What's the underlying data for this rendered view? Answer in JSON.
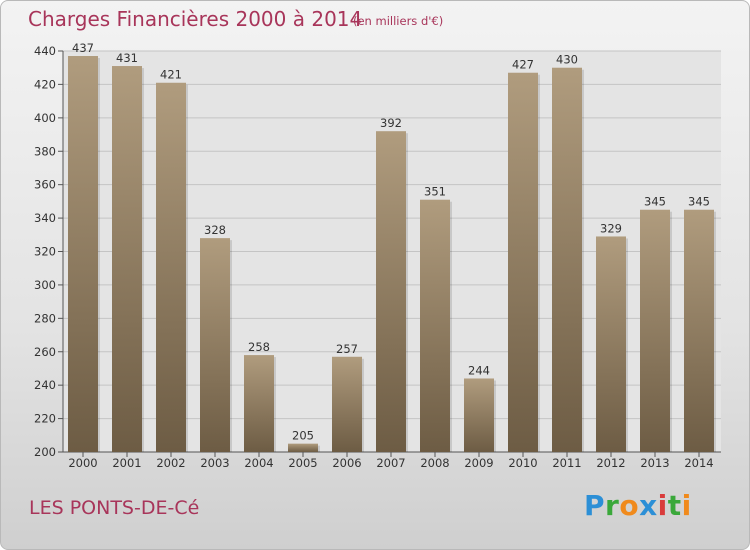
{
  "header": {
    "title": "Charges Financières 2000 à 2014",
    "subtitle": "(en milliers d'€)"
  },
  "footer": {
    "commune": "LES PONTS-DE-Cé",
    "logo_letters": [
      {
        "char": "P",
        "color": "#2c8fd6"
      },
      {
        "char": "r",
        "color": "#3aa83a"
      },
      {
        "char": "o",
        "color": "#f08a1c"
      },
      {
        "char": "x",
        "color": "#2c8fd6"
      },
      {
        "char": "i",
        "color": "#d93b3b"
      },
      {
        "char": "t",
        "color": "#3aa83a"
      },
      {
        "char": "i",
        "color": "#f08a1c"
      }
    ]
  },
  "colors": {
    "bar_light": "#b09c7e",
    "bar_dark": "#6d5c44",
    "title": "#a8355a",
    "grid": "#c4c4c4",
    "plot_bg": "#e4e4e4"
  },
  "chart_data": {
    "type": "bar",
    "title": "Charges Financières 2000 à 2014",
    "subtitle": "(en milliers d'€)",
    "xlabel": "",
    "ylabel": "",
    "categories": [
      "2000",
      "2001",
      "2002",
      "2003",
      "2004",
      "2005",
      "2006",
      "2007",
      "2008",
      "2009",
      "2010",
      "2011",
      "2012",
      "2013",
      "2014"
    ],
    "values": [
      437,
      431,
      421,
      328,
      258,
      205,
      257,
      392,
      351,
      244,
      427,
      430,
      329,
      345,
      345
    ],
    "ylim": [
      200,
      440
    ],
    "yticks": [
      200,
      220,
      240,
      260,
      280,
      300,
      320,
      340,
      360,
      380,
      400,
      420,
      440
    ],
    "grid": true,
    "legend": "none"
  }
}
